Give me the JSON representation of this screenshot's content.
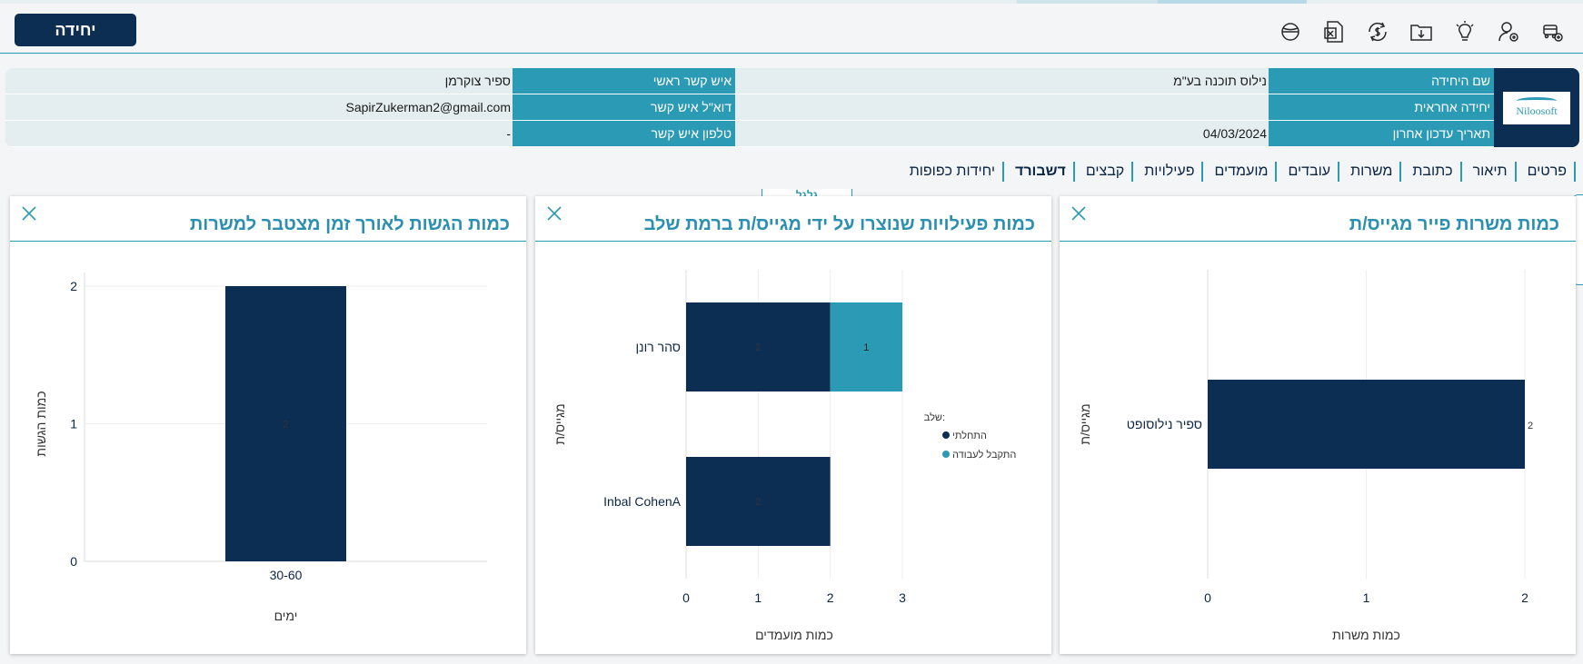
{
  "toolbar": {
    "unit_button": "יחידה",
    "icons": [
      "add-car-icon",
      "user-settings-icon",
      "lightbulb-icon",
      "folder-download-icon",
      "dollar-refresh-icon",
      "excel-icon",
      "globe-icon"
    ]
  },
  "info": {
    "rows": [
      {
        "label_a": "שם היחידה",
        "value_a": "נילוס תוכנה בע\"מ",
        "label_b": "איש קשר ראשי",
        "value_b": "ספיר צוקרמן"
      },
      {
        "label_a": "יחידה אחראית",
        "value_a": "",
        "label_b": "דוא\"ל איש קשר",
        "value_b": "SapirZukerman2@gmail.com"
      },
      {
        "label_a": "תאריך עדכון אחרון",
        "value_a": "04/03/2024",
        "label_b": "טלפון איש קשר",
        "value_b": "-"
      }
    ]
  },
  "tabs": [
    "פרטים",
    "תיאור",
    "כתובת",
    "משרות",
    "עובדים",
    "מועמדים",
    "פעילויות",
    "קבצים",
    "דשבורד",
    "יחידות כפופות"
  ],
  "active_tab": "דשבורד",
  "floating_label": "גלגל",
  "colors": {
    "primary": "#0b2e52",
    "accent": "#2b9ab5",
    "accent2": "#2b8fb0"
  },
  "chart_data": [
    {
      "type": "bar",
      "orientation": "horizontal",
      "title": "כמות משרות פייר מגייס/ת",
      "xlabel": "כמות משרות",
      "ylabel": "מגייס/ת",
      "categories": [
        "ספיר נילוסופט"
      ],
      "values": [
        2
      ],
      "xlim": [
        0,
        2
      ],
      "xticks": [
        "0",
        "1",
        "2"
      ],
      "data_labels": [
        "2"
      ]
    },
    {
      "type": "bar",
      "orientation": "horizontal",
      "stacked": true,
      "title": "כמות פעילויות שנוצרו על ידי מגייס/ת ברמת שלב",
      "xlabel": "כמות מועמדים",
      "ylabel": "מגייס/ת",
      "categories": [
        "סהר רונן",
        "Inbal CohenA"
      ],
      "legend_title": "שלב:",
      "series": [
        {
          "name": "התחלתי",
          "values": [
            2,
            2
          ],
          "labels": [
            "2",
            "2"
          ]
        },
        {
          "name": "התקבל לעבודה",
          "values": [
            1,
            0
          ],
          "labels": [
            "1",
            ""
          ]
        }
      ],
      "xlim": [
        0,
        3
      ],
      "xticks": [
        "0",
        "1",
        "2",
        "3"
      ]
    },
    {
      "type": "bar",
      "title": "כמות הגשות לאורך זמן מצטבר למשרות",
      "xlabel": "ימים",
      "ylabel": "כמות הגשות",
      "categories": [
        "30-60"
      ],
      "values": [
        2
      ],
      "ylim": [
        0,
        2
      ],
      "yticks": [
        "0",
        "1",
        "2"
      ],
      "data_labels": [
        "2"
      ]
    }
  ]
}
